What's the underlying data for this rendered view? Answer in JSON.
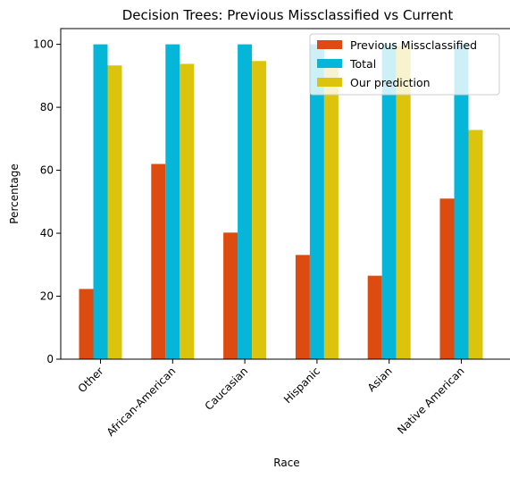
{
  "chart_data": {
    "type": "bar",
    "title": "Decision Trees: Previous Missclassified vs Current",
    "xlabel": "Race",
    "ylabel": "Percentage",
    "categories": [
      "Other",
      "African-American",
      "Caucasian",
      "Hispanic",
      "Asian",
      "Native American"
    ],
    "series": [
      {
        "name": "Previous Missclassified",
        "color": "#dd4b10",
        "values": [
          22.3,
          62.0,
          40.2,
          33.1,
          26.5,
          51.0
        ]
      },
      {
        "name": "Total",
        "color": "#05b6d8",
        "values": [
          100,
          100,
          100,
          100,
          100,
          100
        ]
      },
      {
        "name": "Our prediction",
        "color": "#dcc40c",
        "values": [
          93.3,
          93.8,
          94.7,
          95.5,
          99.5,
          72.8
        ]
      }
    ],
    "ylim": [
      0,
      105
    ],
    "yticks": [
      0,
      20,
      40,
      60,
      80,
      100
    ],
    "grid": false,
    "legend_position": "top-right"
  }
}
